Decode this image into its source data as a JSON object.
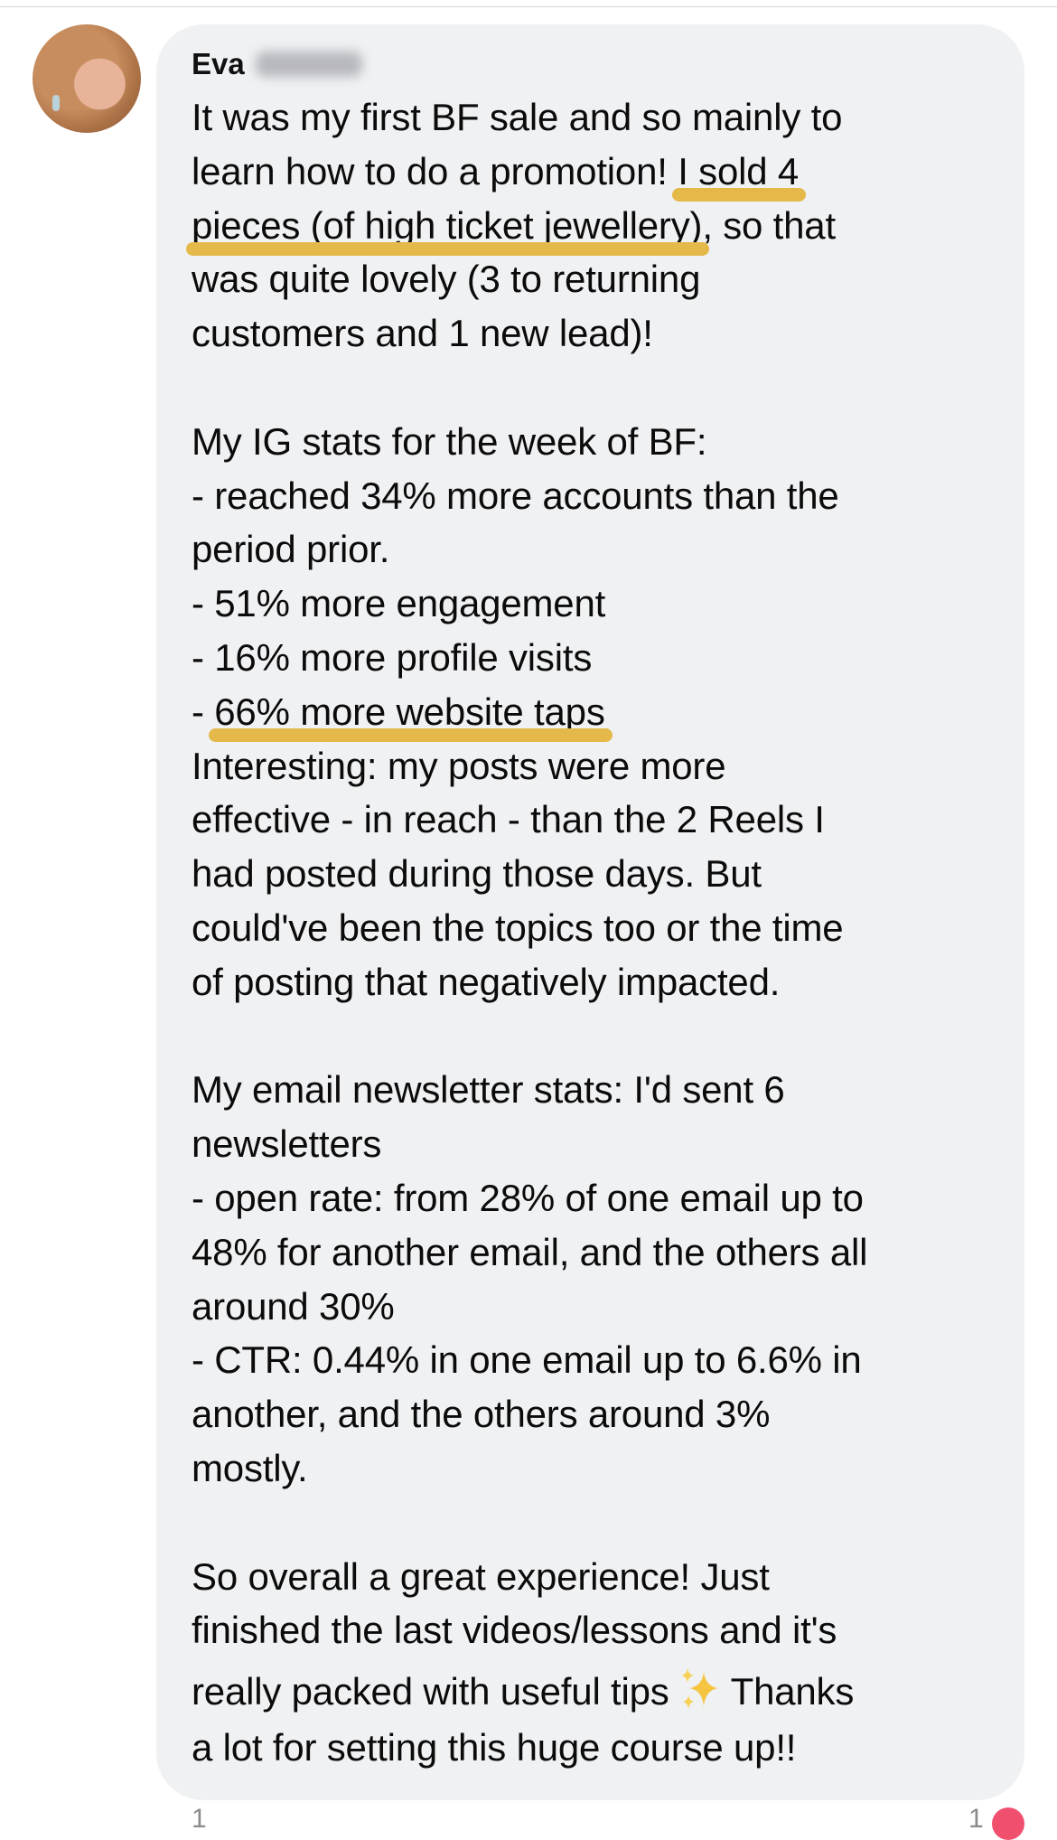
{
  "comment": {
    "author_first_name": "Eva",
    "highlight_color": "#e4b94a",
    "lines": [
      [
        {
          "t": "It was my first BF sale and so mainly to"
        }
      ],
      [
        {
          "t": "learn how to do a promotion! "
        },
        {
          "t": "I sold 4",
          "hl": true
        }
      ],
      [
        {
          "t": "pieces (of high ticket jewellery)",
          "hl": true
        },
        {
          "t": ", so that"
        }
      ],
      [
        {
          "t": "was quite lovely (3 to returning"
        }
      ],
      [
        {
          "t": "customers and 1 new lead)!"
        }
      ],
      [],
      [
        {
          "t": "My IG stats for the week of BF:"
        }
      ],
      [
        {
          "t": "- reached 34% more accounts than the"
        }
      ],
      [
        {
          "t": "period prior."
        }
      ],
      [
        {
          "t": "- 51% more engagement"
        }
      ],
      [
        {
          "t": "- 16% more profile visits"
        }
      ],
      [
        {
          "t": "- "
        },
        {
          "t": "66% more website taps",
          "hl": true
        }
      ],
      [
        {
          "t": "Interesting: my posts were more"
        }
      ],
      [
        {
          "t": "effective - in reach - than the 2 Reels I"
        }
      ],
      [
        {
          "t": "had posted during those days. But"
        }
      ],
      [
        {
          "t": "could've been the topics too or the time"
        }
      ],
      [
        {
          "t": "of posting that negatively impacted."
        }
      ],
      [],
      [
        {
          "t": "My email newsletter stats: I'd sent 6"
        }
      ],
      [
        {
          "t": "newsletters"
        }
      ],
      [
        {
          "t": "- open rate: from 28% of one email up to"
        }
      ],
      [
        {
          "t": "48% for another email, and the others all"
        }
      ],
      [
        {
          "t": "around 30%"
        }
      ],
      [
        {
          "t": "- CTR: 0.44% in one email up to 6.6% in"
        }
      ],
      [
        {
          "t": "another, and the others around 3%"
        }
      ],
      [
        {
          "t": "mostly."
        }
      ],
      [],
      [
        {
          "t": "So overall a great experience! Just"
        }
      ],
      [
        {
          "t": "finished the last videos/lessons and it's"
        }
      ],
      [
        {
          "t": "really packed with useful tips"
        },
        {
          "icon": "sparkles-icon"
        },
        {
          "t": "Thanks"
        }
      ],
      [
        {
          "t": "a lot for setting this huge course up!!"
        }
      ]
    ]
  },
  "footer": {
    "left_count": "1",
    "right_count": "1",
    "reaction_color": "#f0506e"
  }
}
